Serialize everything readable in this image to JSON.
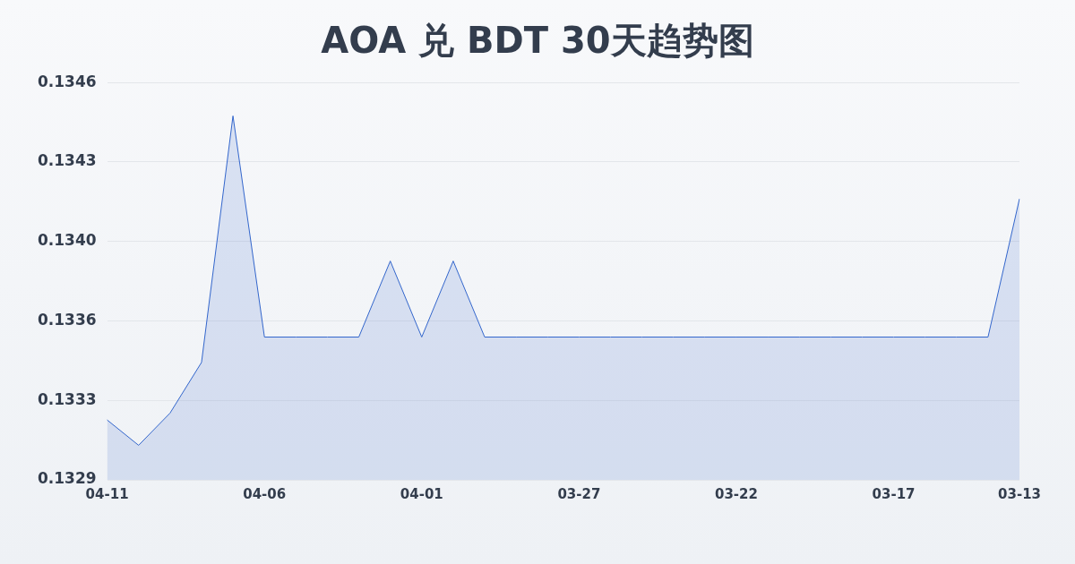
{
  "chart_data": {
    "type": "area",
    "title": "AOA 兑 BDT 30天趋势图",
    "categories": [
      "04-11",
      null,
      null,
      null,
      null,
      "04-06",
      null,
      null,
      null,
      null,
      "04-01",
      null,
      null,
      null,
      null,
      "03-27",
      null,
      null,
      null,
      null,
      "03-22",
      null,
      null,
      null,
      null,
      "03-17",
      null,
      null,
      null,
      "03-13"
    ],
    "series": [
      {
        "color": "#3366cc",
        "values": [
          0.13318,
          0.13307,
          0.13321,
          0.13343,
          0.1345,
          0.13354,
          0.13354,
          0.13354,
          0.13354,
          0.13387,
          0.13354,
          0.13387,
          0.13354,
          0.13354,
          0.13354,
          0.13354,
          0.13354,
          0.13354,
          0.13354,
          0.13354,
          0.13354,
          0.13354,
          0.13354,
          0.13354,
          0.13354,
          0.13354,
          0.13354,
          0.13354,
          0.13354,
          0.13414
        ]
      }
    ],
    "ylim": [
      0.13292,
      0.134645
    ],
    "yticks": [
      {
        "value": 0.13292,
        "label": "0.1329"
      },
      {
        "value": 0.133265,
        "label": "0.1333"
      },
      {
        "value": 0.13361,
        "label": "0.1336"
      },
      {
        "value": 0.133955,
        "label": "0.1340"
      },
      {
        "value": 0.1343,
        "label": "0.1343"
      },
      {
        "value": 0.134645,
        "label": "0.1346"
      }
    ],
    "grid": "y",
    "legend": false,
    "marker": "none"
  }
}
